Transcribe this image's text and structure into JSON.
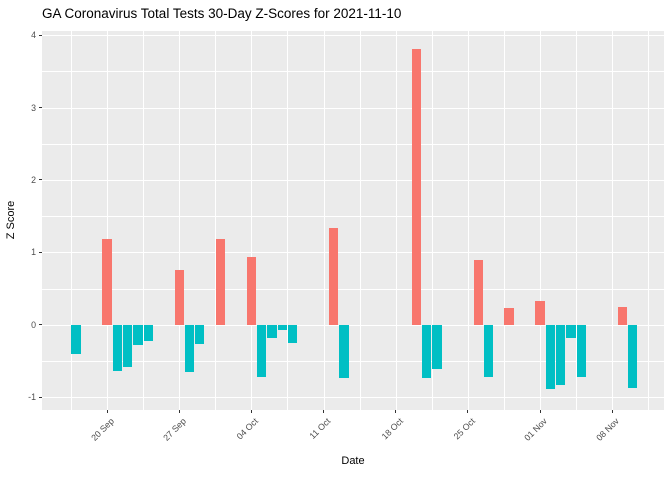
{
  "chart_data": {
    "type": "bar",
    "title": "GA Coronavirus Total Tests 30-Day Z-Scores for 2021-11-10",
    "xlabel": "Date",
    "ylabel": "Z Score",
    "legend": "none",
    "grid": true,
    "ylim": [
      -1.18,
      4.06
    ],
    "y_ticks": [
      -1,
      0,
      1,
      2,
      3,
      4
    ],
    "x_ticks": [
      {
        "label": "20 Sep",
        "date": "2021-09-20"
      },
      {
        "label": "27 Sep",
        "date": "2021-09-27"
      },
      {
        "label": "04 Oct",
        "date": "2021-10-04"
      },
      {
        "label": "11 Oct",
        "date": "2021-10-11"
      },
      {
        "label": "18 Oct",
        "date": "2021-10-18"
      },
      {
        "label": "25 Oct",
        "date": "2021-10-25"
      },
      {
        "label": "01 Nov",
        "date": "2021-11-01"
      },
      {
        "label": "08 Nov",
        "date": "2021-11-08"
      }
    ],
    "colors": {
      "positive": "#F8766D",
      "negative": "#00BFC4",
      "panel_bg": "#EBEBEB",
      "grid": "#FFFFFF",
      "tick_text": "#4D4D4D",
      "axis_text": "#000000"
    },
    "points": [
      {
        "date": "2021-09-17",
        "value": -0.4
      },
      {
        "date": "2021-09-20",
        "value": 1.19
      },
      {
        "date": "2021-09-21",
        "value": -0.64
      },
      {
        "date": "2021-09-22",
        "value": -0.59
      },
      {
        "date": "2021-09-23",
        "value": -0.28
      },
      {
        "date": "2021-09-24",
        "value": -0.22
      },
      {
        "date": "2021-09-27",
        "value": 0.76
      },
      {
        "date": "2021-09-28",
        "value": -0.66
      },
      {
        "date": "2021-09-29",
        "value": -0.27
      },
      {
        "date": "2021-10-01",
        "value": 1.18
      },
      {
        "date": "2021-10-04",
        "value": 0.94
      },
      {
        "date": "2021-10-05",
        "value": -0.72
      },
      {
        "date": "2021-10-06",
        "value": -0.18
      },
      {
        "date": "2021-10-07",
        "value": -0.07
      },
      {
        "date": "2021-10-08",
        "value": -0.25
      },
      {
        "date": "2021-10-12",
        "value": 1.34
      },
      {
        "date": "2021-10-13",
        "value": -0.74
      },
      {
        "date": "2021-10-20",
        "value": 3.81
      },
      {
        "date": "2021-10-21",
        "value": -0.74
      },
      {
        "date": "2021-10-22",
        "value": -0.61
      },
      {
        "date": "2021-10-26",
        "value": 0.9
      },
      {
        "date": "2021-10-27",
        "value": -0.72
      },
      {
        "date": "2021-10-29",
        "value": 0.23
      },
      {
        "date": "2021-11-01",
        "value": 0.33
      },
      {
        "date": "2021-11-02",
        "value": -0.89
      },
      {
        "date": "2021-11-03",
        "value": -0.83
      },
      {
        "date": "2021-11-04",
        "value": -0.18
      },
      {
        "date": "2021-11-05",
        "value": -0.72
      },
      {
        "date": "2021-11-09",
        "value": 0.24
      },
      {
        "date": "2021-11-10",
        "value": -0.88
      }
    ]
  }
}
